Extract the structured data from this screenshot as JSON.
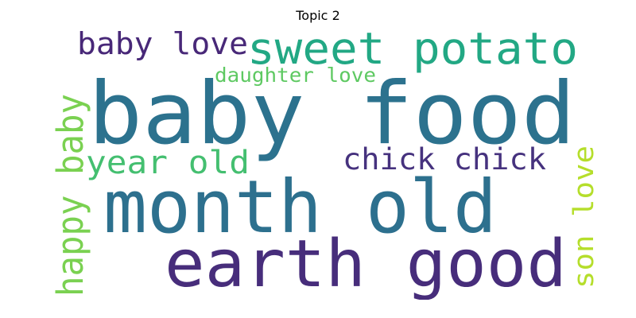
{
  "title": "Topic 2",
  "words": [
    {
      "text": "baby food",
      "color": "#2c728e"
    },
    {
      "text": "month old",
      "color": "#2d708e"
    },
    {
      "text": "earth good",
      "color": "#472d7b"
    },
    {
      "text": "sweet potato",
      "color": "#22a884"
    },
    {
      "text": "baby love",
      "color": "#482878"
    },
    {
      "text": "happy baby",
      "color": "#7ad151"
    },
    {
      "text": "year old",
      "color": "#44bf70"
    },
    {
      "text": "chick chick",
      "color": "#46327e"
    },
    {
      "text": "daughter love",
      "color": "#5ec962"
    },
    {
      "text": "son love",
      "color": "#b5de2b"
    }
  ]
}
